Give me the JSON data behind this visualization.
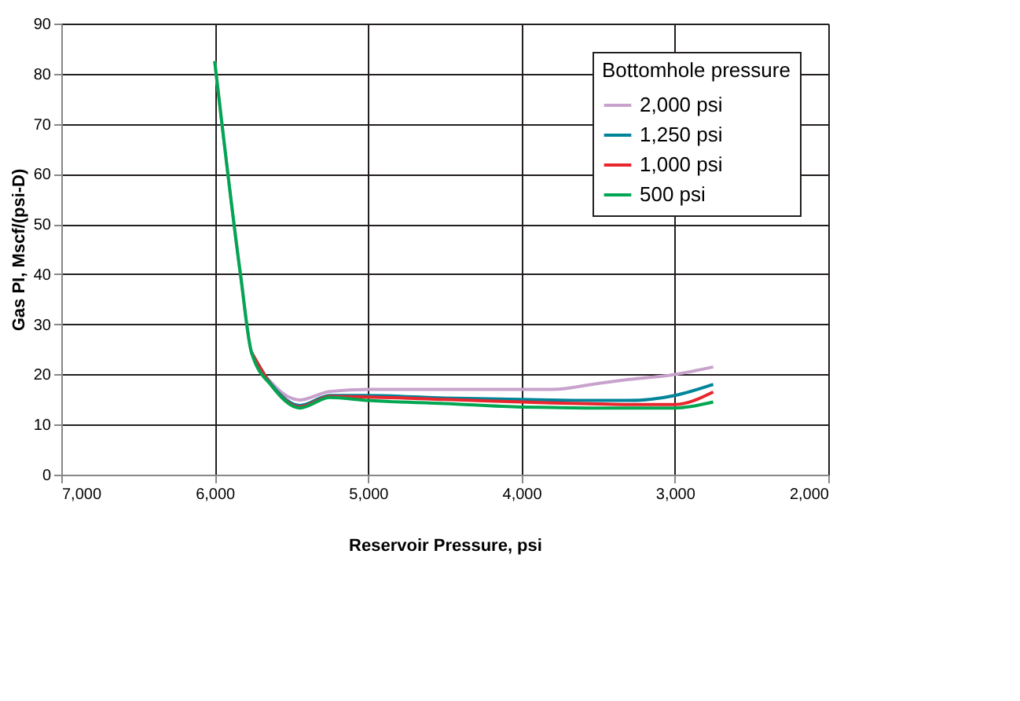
{
  "chart_data": {
    "type": "line",
    "xlabel": "Reservoir Pressure, psi",
    "ylabel": "Gas PI, Mscf/(psi-D)",
    "legend_title": "Bottomhole pressure",
    "x": [
      6000,
      5830,
      5760,
      5625,
      5445,
      5250,
      5000,
      4500,
      4000,
      3800,
      3500,
      3300,
      3000,
      2750
    ],
    "series": [
      {
        "name": "2,000 psi",
        "color": "#c8a2cc",
        "values": [
          82.5,
          39.5,
          24.4,
          18.2,
          14.9,
          16.6,
          17,
          17,
          17,
          17,
          18.2,
          19,
          20,
          21.5
        ]
      },
      {
        "name": "1,250 psi",
        "color": "#00849a",
        "values": [
          null,
          null,
          24.4,
          17.8,
          13.8,
          15.8,
          15.8,
          15.3,
          15,
          14.9,
          14.8,
          14.8,
          15.8,
          18
        ]
      },
      {
        "name": "1,000 psi",
        "color": "#e8262d",
        "values": [
          null,
          null,
          24.4,
          17.6,
          13.5,
          15.6,
          15.5,
          15,
          14.5,
          14.3,
          14.1,
          14,
          14,
          16.5
        ]
      },
      {
        "name": "500 psi",
        "color": "#00a651",
        "values": [
          82.5,
          39.5,
          24.4,
          17.6,
          13.3,
          15.4,
          14.8,
          14.2,
          13.5,
          13.4,
          13.3,
          13.3,
          13.3,
          14.5
        ]
      }
    ],
    "xlim": [
      7000,
      2000
    ],
    "xticks": [
      {
        "value": 7000,
        "label": "7,000"
      },
      {
        "value": 6000,
        "label": "6,000"
      },
      {
        "value": 5000,
        "label": "5,000"
      },
      {
        "value": 4000,
        "label": "4,000"
      },
      {
        "value": 3000,
        "label": "3,000"
      },
      {
        "value": 2000,
        "label": "2,000"
      }
    ],
    "ylim": [
      0,
      90
    ],
    "yticks": [
      0,
      10,
      20,
      30,
      40,
      50,
      60,
      70,
      80,
      90
    ],
    "grid": true,
    "legend": "top right",
    "marker": "none",
    "line_style": "solid"
  }
}
